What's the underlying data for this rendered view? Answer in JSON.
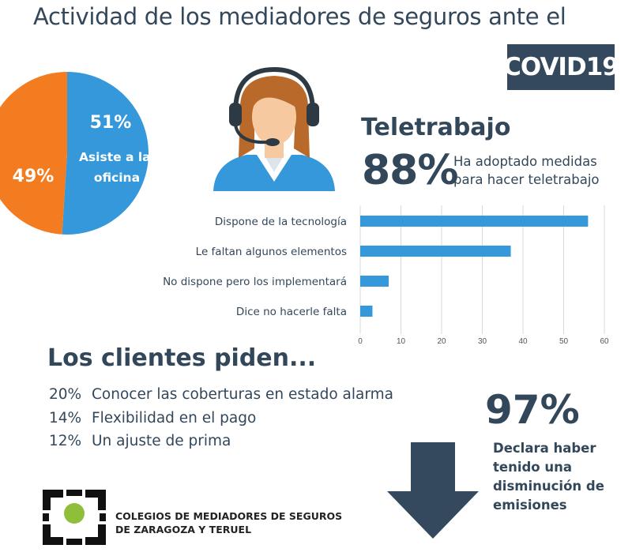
{
  "header": {
    "title": "Actividad de los mediadores de seguros ante el",
    "badge": "COVID19"
  },
  "pie_chart": {
    "type": "pie",
    "slices": [
      {
        "label": "Asiste a la oficina",
        "value": 51,
        "value_label": "51%",
        "color": "#3498db"
      },
      {
        "label": "",
        "value": 49,
        "value_label": "49%",
        "color": "#f47c20"
      }
    ]
  },
  "teletrabajo": {
    "title": "Teletrabajo",
    "percent": "88%",
    "description": "Ha adoptado medidas para hacer teletrabajo"
  },
  "chart_data": {
    "type": "bar",
    "orientation": "horizontal",
    "categories": [
      "Dispone de la tecnología",
      "Le faltan algunos elementos",
      "No dispone pero los implementará",
      "Dice no hacerle falta"
    ],
    "values": [
      56,
      37,
      7,
      3
    ],
    "xlim": [
      0,
      60
    ],
    "xticks": [
      "0",
      "10",
      "20",
      "30",
      "40",
      "50",
      "60"
    ],
    "grid": true,
    "bar_color": "#3498db"
  },
  "clientes": {
    "title": "Los clientes piden...",
    "requests": [
      {
        "pct": "20%",
        "text": "Conocer las coberturas en estado alarma"
      },
      {
        "pct": "14%",
        "text": "Flexibilidad en el pago"
      },
      {
        "pct": "12%",
        "text": "Un ajuste de prima"
      }
    ]
  },
  "emisiones": {
    "percent": "97%",
    "description": "Declara haber tenido una disminución de emisiones",
    "icon": "down-arrow-icon"
  },
  "footer": {
    "organization": "COLEGIOS DE MEDIADORES DE SEGUROS DE ZARAGOZA Y TERUEL",
    "logo_icon": "colegio-logo-icon"
  },
  "colors": {
    "dark": "#33475b",
    "blue": "#3498db",
    "orange": "#f47c20"
  }
}
